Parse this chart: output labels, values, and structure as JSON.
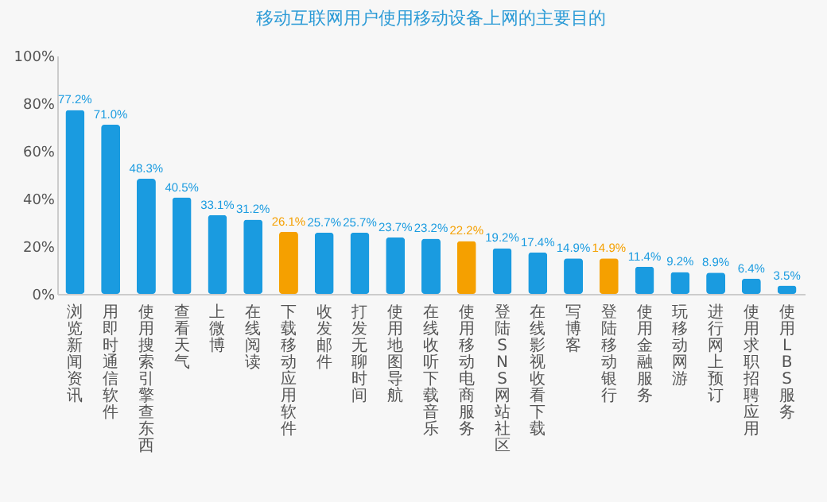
{
  "chart_data": {
    "type": "bar",
    "title": "移动互联网用户使用移动设备上网的主要目的",
    "categories": [
      "浏览新闻资讯",
      "用即时通信软件",
      "使用搜索引擎查东西",
      "查看天气",
      "上微博",
      "在线阅读",
      "下载移动应用软件",
      "收发邮件",
      "打发无聊时间",
      "使用地图导航",
      "在线收听下载音乐",
      "使用移动电商服务",
      "登陆SNS网站社区",
      "在线影视收看下载",
      "写博客",
      "登陆移动银行",
      "使用金融服务",
      "玩移动网游",
      "进行网上预订",
      "使用求职招聘应用",
      "使用LBS服务"
    ],
    "values": [
      77.2,
      71.0,
      48.3,
      40.5,
      33.1,
      31.2,
      26.1,
      25.7,
      25.7,
      23.7,
      23.2,
      22.2,
      19.2,
      17.4,
      14.9,
      14.9,
      11.4,
      9.2,
      8.9,
      6.4,
      3.5
    ],
    "colors": [
      "#1a9be0",
      "#1a9be0",
      "#1a9be0",
      "#1a9be0",
      "#1a9be0",
      "#1a9be0",
      "#f5a000",
      "#1a9be0",
      "#1a9be0",
      "#1a9be0",
      "#1a9be0",
      "#f5a000",
      "#1a9be0",
      "#1a9be0",
      "#1a9be0",
      "#f5a000",
      "#1a9be0",
      "#1a9be0",
      "#1a9be0",
      "#1a9be0",
      "#1a9be0"
    ],
    "value_labels": [
      "77.2%",
      "71.0%",
      "48.3%",
      "40.5%",
      "33.1%",
      "31.2%",
      "26.1%",
      "25.7%",
      "25.7%",
      "23.7%",
      "23.2%",
      "22.2%",
      "19.2%",
      "17.4%",
      "14.9%",
      "14.9%",
      "11.4%",
      "9.2%",
      "8.9%",
      "6.4%",
      "3.5%"
    ],
    "ylim": [
      0,
      100
    ],
    "yticks": [
      {
        "value": 0,
        "label": "0%"
      },
      {
        "value": 20,
        "label": "20%"
      },
      {
        "value": 40,
        "label": "40%"
      },
      {
        "value": 60,
        "label": "60%"
      },
      {
        "value": 80,
        "label": "80%"
      },
      {
        "value": 100,
        "label": "100%"
      }
    ],
    "grid": false
  }
}
